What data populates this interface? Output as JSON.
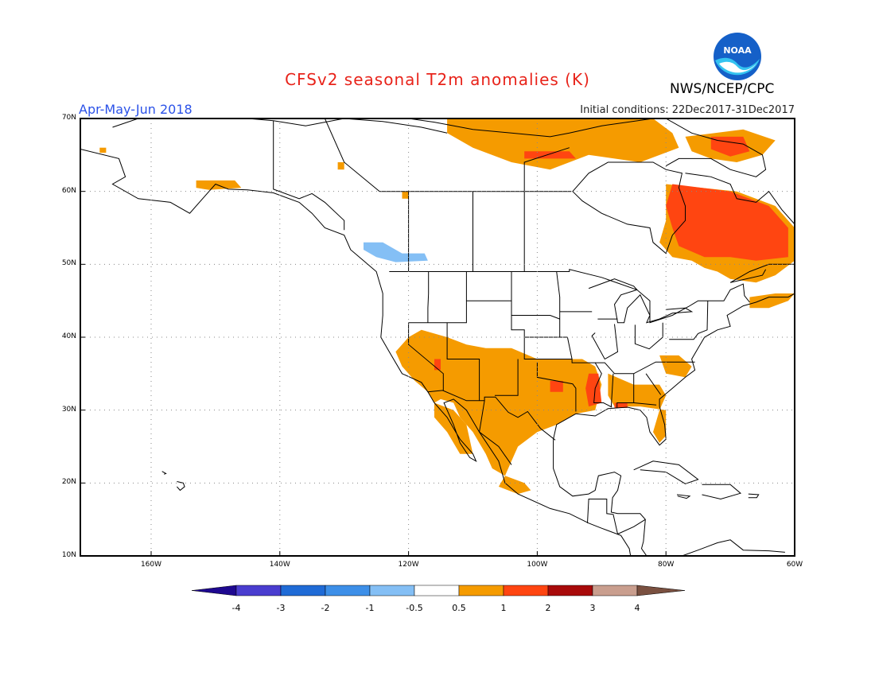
{
  "header": {
    "title": "CFSv2 seasonal T2m anomalies (K)",
    "season": "Apr-May-Jun 2018",
    "initial_conditions": "Initial conditions: 22Dec2017-31Dec2017",
    "agency": "NWS/NCEP/CPC",
    "logo_text": "NOAA",
    "logo_icon": "noaa-logo"
  },
  "axes": {
    "lat_labels": [
      "70N",
      "60N",
      "50N",
      "40N",
      "30N",
      "20N",
      "10N"
    ],
    "lon_labels": [
      "160W",
      "140W",
      "120W",
      "100W",
      "80W",
      "60W"
    ],
    "lon_range": [
      -171,
      -60
    ],
    "lat_range": [
      10,
      70
    ],
    "grid": true
  },
  "colorbar": {
    "labels": [
      "-4",
      "-3",
      "-2",
      "-1",
      "-0.5",
      "0.5",
      "1",
      "2",
      "3",
      "4"
    ],
    "colors": [
      "#1e0890",
      "#4a3dcf",
      "#1f6bd6",
      "#3d8fe8",
      "#84bff5",
      "#ffffff",
      "#f59b00",
      "#ff4511",
      "#a80a0a",
      "#c99e8e",
      "#7a5040"
    ]
  },
  "map_data": {
    "anomaly_regions": [
      {
        "name": "Northeast Canada / Hudson region",
        "level": "1 to 2",
        "color": "#ff4511"
      },
      {
        "name": "Canadian Arctic Archipelago",
        "level": "0.5 to 1",
        "color": "#f59b00"
      },
      {
        "name": "Southwest and South-Central US",
        "level": "0.5 to 1",
        "color": "#f59b00"
      },
      {
        "name": "Lower Mississippi Valley",
        "level": "1 to 2",
        "color": "#ff4511"
      },
      {
        "name": "Northern Mexico",
        "level": "0.5 to 1",
        "color": "#f59b00"
      },
      {
        "name": "Florida / Southeast",
        "level": "0.5 to 1",
        "color": "#f59b00"
      },
      {
        "name": "Pacific Northwest coast",
        "level": "-1 to -0.5",
        "color": "#84bff5"
      }
    ]
  }
}
